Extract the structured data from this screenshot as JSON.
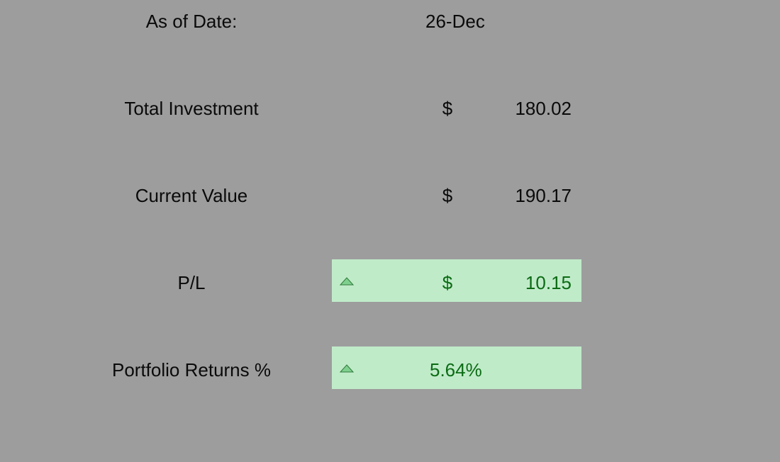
{
  "summary": {
    "as_of": {
      "label": "As of Date:",
      "value": "26-Dec"
    },
    "total_investment": {
      "label": "Total Investment",
      "currency": "$",
      "value": "180.02"
    },
    "current_value": {
      "label": "Current Value",
      "currency": "$",
      "value": "190.17"
    },
    "pl": {
      "label": "P/L",
      "currency": "$",
      "value": "10.15",
      "trend_icon": "triangle-up-icon"
    },
    "portfolio_returns": {
      "label": "Portfolio Returns %",
      "value": "5.64%",
      "trend_icon": "triangle-up-icon"
    }
  },
  "colors": {
    "background": "#9d9d9d",
    "highlight_fill": "#c0ebc9",
    "positive_text": "#0b6b14",
    "icon_fill": "#7fcf8f",
    "icon_stroke": "#2f7a3a"
  }
}
